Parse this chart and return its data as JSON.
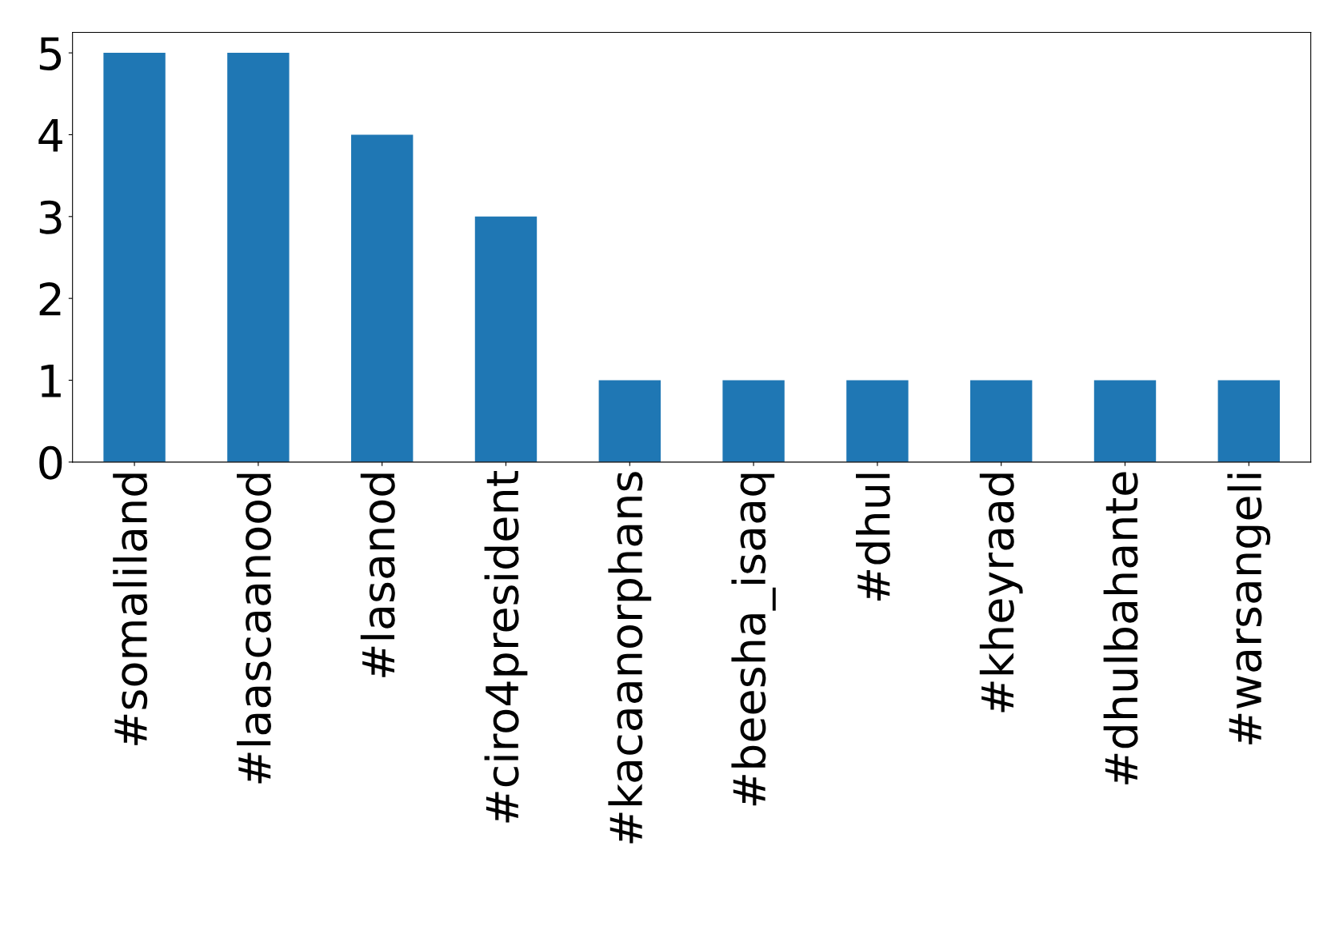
{
  "chart_data": {
    "type": "bar",
    "categories": [
      "#somaliland",
      "#laascaanood",
      "#lasanod",
      "#ciro4president",
      "#kacaanorphans",
      "#beesha_isaaq",
      "#dhul",
      "#kheyraad",
      "#dhulbahante",
      "#warsangeli"
    ],
    "values": [
      5,
      5,
      4,
      3,
      1,
      1,
      1,
      1,
      1,
      1
    ],
    "color": "#1f77b4",
    "ylim": [
      0,
      5.25
    ],
    "yticks": [
      0,
      1,
      2,
      3,
      4,
      5
    ],
    "grid": false,
    "legend": false
  }
}
